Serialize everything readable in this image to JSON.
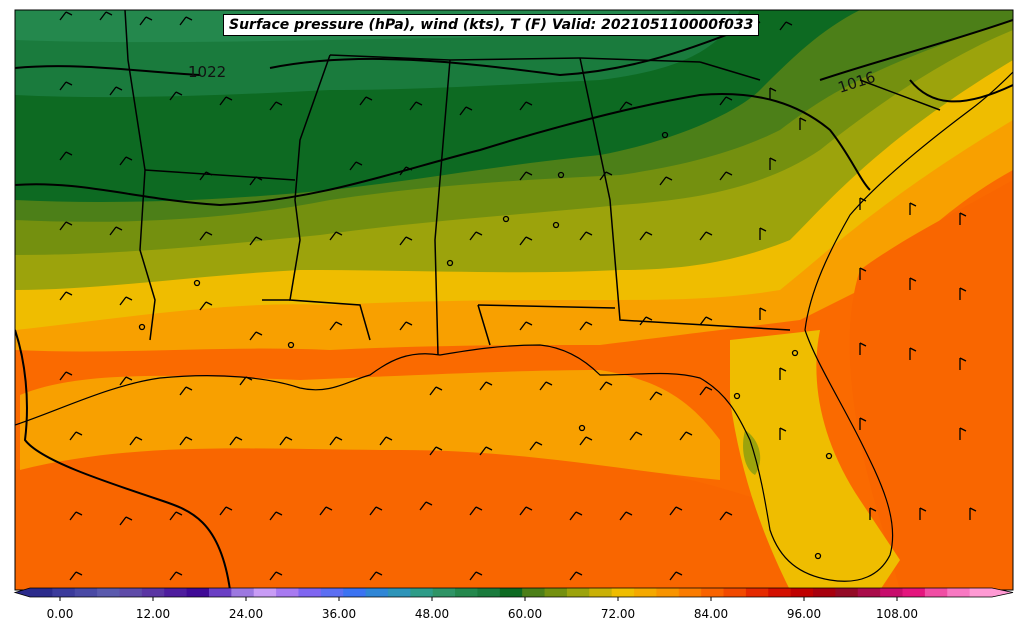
{
  "title": "Surface pressure (hPa), wind (kts), T (F) Valid: 202105110000f033",
  "isobar_labels": [
    "1022",
    "1016"
  ],
  "colorbar": {
    "ticks": [
      "0.00",
      "12.00",
      "24.00",
      "36.00",
      "48.00",
      "60.00",
      "72.00",
      "84.00",
      "96.00",
      "108.00"
    ],
    "colors": [
      "#2b2b8c",
      "#3b3b9c",
      "#4a4aa5",
      "#5a5aad",
      "#5e4ba8",
      "#5a35a3",
      "#4e1d9e",
      "#3f0a96",
      "#6a3fc4",
      "#9c78e0",
      "#c89cf5",
      "#a87af0",
      "#7f66f0",
      "#5b6ef2",
      "#3b73f2",
      "#2f86d6",
      "#2d94b8",
      "#2e9c88",
      "#2f9466",
      "#24884d",
      "#1a7b3d",
      "#0d6a22",
      "#4c7f18",
      "#74900f",
      "#9ca30c",
      "#c9b107",
      "#efbd00",
      "#f5a900",
      "#f89400",
      "#fb7c00",
      "#f96300",
      "#f24a00",
      "#e52a00",
      "#d40f00",
      "#c00000",
      "#a8000e",
      "#940a26",
      "#a90b4a",
      "#c70c6c",
      "#e4157e",
      "#f04da4",
      "#f878c2",
      "#ff9ad4"
    ]
  }
}
